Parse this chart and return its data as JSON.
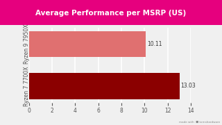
{
  "title": "Average Performance per MSRP (US)",
  "title_bg_color": "#e6007e",
  "title_text_color": "#ffffff",
  "bg_color": "#f0f0f0",
  "categories": [
    "Ryzen 7 7700X",
    "Ryzen 9 7950X"
  ],
  "values": [
    13.03,
    10.11
  ],
  "bar_colors": [
    "#8b0000",
    "#e07070"
  ],
  "value_labels": [
    "13.03",
    "10.11"
  ],
  "xlim": [
    0,
    14
  ],
  "xticks": [
    0,
    2,
    4,
    6,
    8,
    10,
    12,
    14
  ],
  "grid_color": "#ffffff",
  "tick_color": "#555555",
  "label_fontsize": 5.5,
  "value_fontsize": 5.5,
  "title_fontsize": 7.5
}
